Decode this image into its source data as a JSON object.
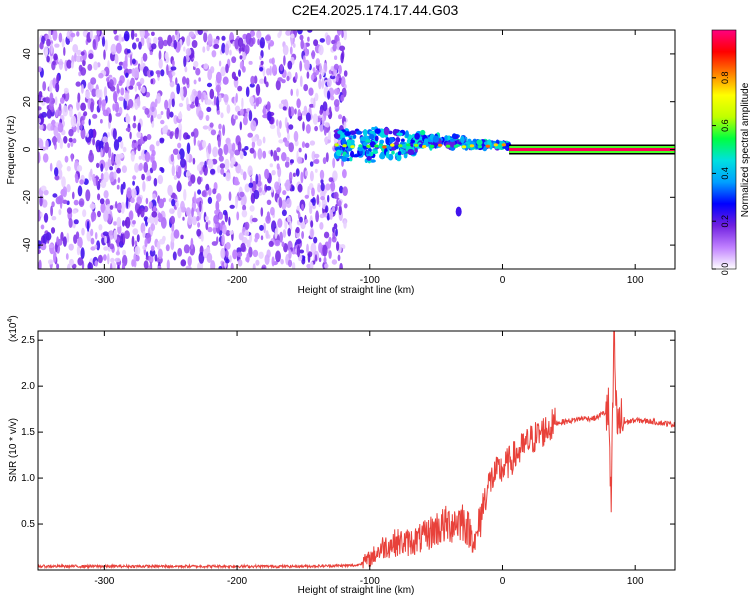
{
  "title": "C2E4.2025.174.17.44.G03",
  "chart_data": [
    {
      "type": "heatmap",
      "xlabel": "Height of straight line (km)",
      "ylabel": "Frequency (Hz)",
      "xlim": [
        -350,
        130
      ],
      "ylim": [
        -50,
        50
      ],
      "x_ticks": [
        -300,
        -200,
        -100,
        0,
        100
      ],
      "y_ticks": [
        -40,
        -20,
        0,
        20,
        40
      ],
      "colorbar": {
        "label": "Normalized spectral amplitude",
        "range": [
          0,
          1
        ],
        "ticks": [
          "0.0",
          "0.2",
          "0.4",
          "0.6",
          "0.8"
        ],
        "tick_values": [
          0,
          0.2,
          0.4,
          0.6,
          0.8
        ],
        "colors": [
          "#ffffff",
          "#c080ff",
          "#7020e0",
          "#0000ff",
          "#00a0ff",
          "#00e0e0",
          "#00ff40",
          "#c0ff00",
          "#ffff00",
          "#ff8000",
          "#ff0000",
          "#ff0080"
        ]
      },
      "regions": [
        {
          "kind": "noise",
          "x_range": [
            -350,
            -118
          ],
          "freq_range": [
            -50,
            50
          ],
          "amplitude": "low"
        },
        {
          "kind": "signal-cluster",
          "x_range": [
            -125,
            5
          ],
          "freq_center": 2,
          "freq_halfwidth": 8,
          "amplitude": "medium"
        },
        {
          "kind": "carrier-line",
          "x_range": [
            5,
            130
          ],
          "freq": 0,
          "amplitude": "high"
        },
        {
          "kind": "blob",
          "x": -33,
          "freq": -26,
          "amplitude": "low"
        }
      ]
    },
    {
      "type": "line",
      "xlabel": "Height of straight line (km)",
      "ylabel": "SNR (10 * v/v)",
      "y_multiplier": "(x10",
      "y_multiplier_exp": "4",
      "xlim": [
        -350,
        130
      ],
      "ylim": [
        0,
        2.6
      ],
      "x_ticks": [
        -300,
        -200,
        -100,
        0,
        100
      ],
      "y_ticks": [
        "0.5",
        "1.0",
        "1.5",
        "2.0",
        "2.5"
      ],
      "y_tick_values": [
        0.5,
        1.0,
        1.5,
        2.0,
        2.5
      ],
      "color": "#e8413a",
      "series": [
        {
          "x": [
            -350,
            -300,
            -250,
            -200,
            -150,
            -110,
            -100,
            -90,
            -80,
            -70,
            -60,
            -50,
            -40,
            -30,
            -20,
            -15,
            -10,
            -5,
            0,
            10,
            20,
            30,
            40,
            50,
            60,
            70,
            75,
            80,
            82,
            84,
            86,
            90,
            100,
            110,
            120,
            130
          ],
          "values": [
            0.04,
            0.04,
            0.04,
            0.04,
            0.04,
            0.05,
            0.12,
            0.25,
            0.3,
            0.3,
            0.35,
            0.45,
            0.5,
            0.55,
            0.3,
            0.7,
            0.95,
            1.05,
            1.1,
            1.25,
            1.4,
            1.5,
            1.6,
            1.62,
            1.65,
            1.65,
            1.7,
            1.72,
            0.6,
            2.6,
            1.6,
            1.6,
            1.63,
            1.62,
            1.6,
            1.58
          ]
        }
      ]
    }
  ]
}
